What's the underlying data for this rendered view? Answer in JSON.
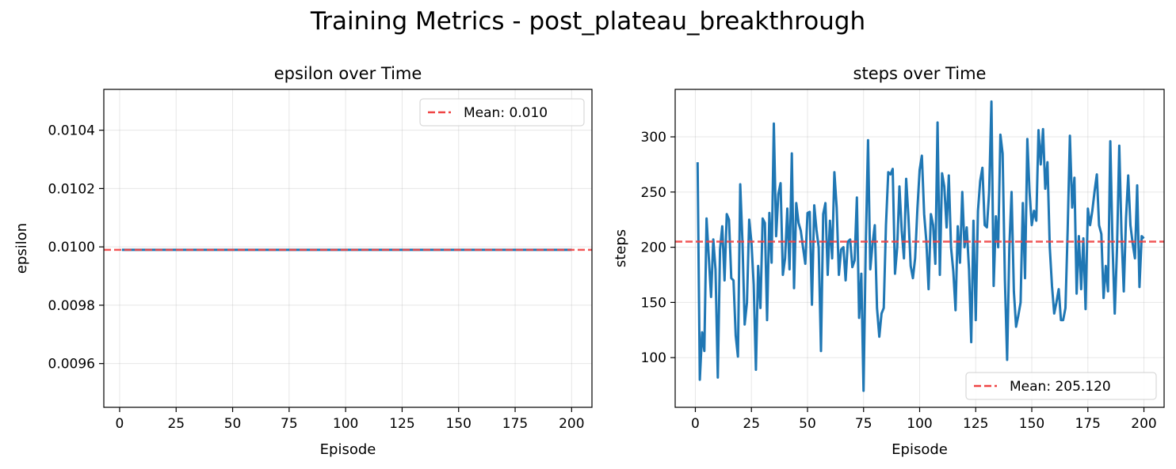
{
  "figure": {
    "title": "Training Metrics - post_plateau_breakthrough"
  },
  "chart_data": [
    {
      "type": "line",
      "title": "epsilon over Time",
      "xlabel": "Episode",
      "ylabel": "epsilon",
      "xlim": [
        -7,
        209
      ],
      "ylim": [
        0.00945,
        0.01054
      ],
      "xticks": [
        0,
        25,
        50,
        75,
        100,
        125,
        150,
        175,
        200
      ],
      "yticks": [
        0.0096,
        0.0098,
        0.01,
        0.0102,
        0.0104
      ],
      "ytick_labels": [
        "0.0096",
        "0.0098",
        "0.0100",
        "0.0102",
        "0.0104"
      ],
      "grid": true,
      "legend_position": "upper-right",
      "series": [
        {
          "name": "epsilon",
          "color": "#1f77b4",
          "x_start": 1,
          "x_end": 200,
          "constant_value": 0.00999
        }
      ],
      "mean_line": {
        "label": "Mean: 0.010",
        "value": 0.00999,
        "color": "#ef4444"
      }
    },
    {
      "type": "line",
      "title": "steps over Time",
      "xlabel": "Episode",
      "ylabel": "steps",
      "xlim": [
        -9,
        209
      ],
      "ylim": [
        55,
        343
      ],
      "xticks": [
        0,
        25,
        50,
        75,
        100,
        125,
        150,
        175,
        200
      ],
      "yticks": [
        100,
        150,
        200,
        250,
        300
      ],
      "ytick_labels": [
        "100",
        "150",
        "200",
        "250",
        "300"
      ],
      "grid": true,
      "legend_position": "lower-right",
      "series": [
        {
          "name": "steps",
          "color": "#1f77b4",
          "x_start": 1,
          "values": [
            277,
            80,
            123,
            106,
            226,
            190,
            155,
            207,
            180,
            82,
            198,
            219,
            170,
            230,
            225,
            172,
            170,
            120,
            101,
            257,
            205,
            130,
            150,
            225,
            205,
            166,
            89,
            183,
            145,
            226,
            222,
            134,
            231,
            186,
            312,
            210,
            248,
            258,
            175,
            190,
            235,
            180,
            285,
            163,
            240,
            222,
            215,
            200,
            185,
            231,
            232,
            148,
            238,
            216,
            200,
            106,
            230,
            240,
            175,
            224,
            190,
            268,
            236,
            175,
            198,
            200,
            170,
            205,
            207,
            182,
            188,
            245,
            136,
            176,
            70,
            205,
            297,
            180,
            203,
            220,
            145,
            119,
            140,
            145,
            220,
            268,
            266,
            271,
            176,
            200,
            255,
            215,
            190,
            262,
            228,
            183,
            172,
            190,
            235,
            270,
            283,
            230,
            205,
            162,
            230,
            220,
            185,
            313,
            175,
            267,
            255,
            218,
            265,
            200,
            178,
            143,
            219,
            186,
            250,
            200,
            218,
            180,
            114,
            224,
            134,
            233,
            260,
            272,
            220,
            218,
            250,
            332,
            165,
            228,
            200,
            302,
            285,
            170,
            98,
            200,
            250,
            160,
            128,
            138,
            150,
            240,
            172,
            298,
            250,
            220,
            233,
            224,
            306,
            275,
            307,
            253,
            277,
            200,
            165,
            140,
            150,
            162,
            134,
            134,
            145,
            216,
            301,
            236,
            263,
            158,
            210,
            162,
            208,
            144,
            235,
            220,
            233,
            251,
            266,
            220,
            212,
            154,
            183,
            160,
            296,
            202,
            140,
            200,
            292,
            213,
            160,
            226,
            265,
            220,
            203,
            190,
            256,
            164,
            210,
            208
          ]
        }
      ],
      "mean_line": {
        "label": "Mean: 205.120",
        "value": 205.12,
        "color": "#ef4444"
      }
    }
  ]
}
